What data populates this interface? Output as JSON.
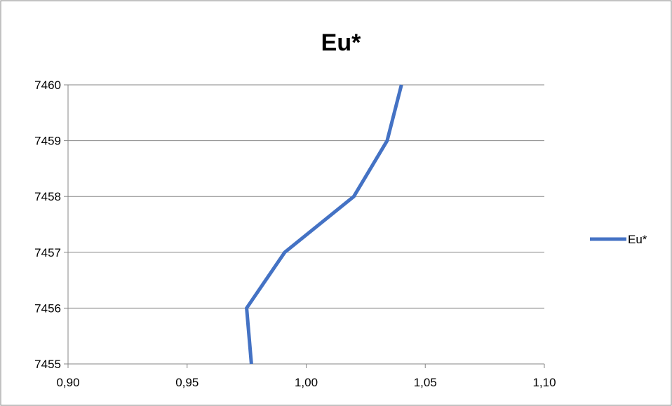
{
  "chart_data": {
    "type": "line",
    "title": "Eu*",
    "xlabel": "",
    "ylabel": "",
    "xlim": [
      0.9,
      1.1
    ],
    "ylim": [
      7455,
      7460
    ],
    "x_ticks": [
      "0,90",
      "0,95",
      "1,00",
      "1,05",
      "1,10"
    ],
    "y_ticks": [
      "7455",
      "7456",
      "7457",
      "7458",
      "7459",
      "7460"
    ],
    "grid": "horizontal major gridlines",
    "legend_position": "right",
    "series": [
      {
        "name": "Eu*",
        "color": "#4472C4",
        "points": [
          {
            "x": 0.977,
            "y": 7455
          },
          {
            "x": 0.975,
            "y": 7456
          },
          {
            "x": 0.991,
            "y": 7457
          },
          {
            "x": 1.02,
            "y": 7458
          },
          {
            "x": 1.034,
            "y": 7459
          },
          {
            "x": 1.04,
            "y": 7460
          }
        ]
      }
    ]
  },
  "colors": {
    "series": "#4472C4",
    "grid": "#868686",
    "border": "#868686"
  }
}
